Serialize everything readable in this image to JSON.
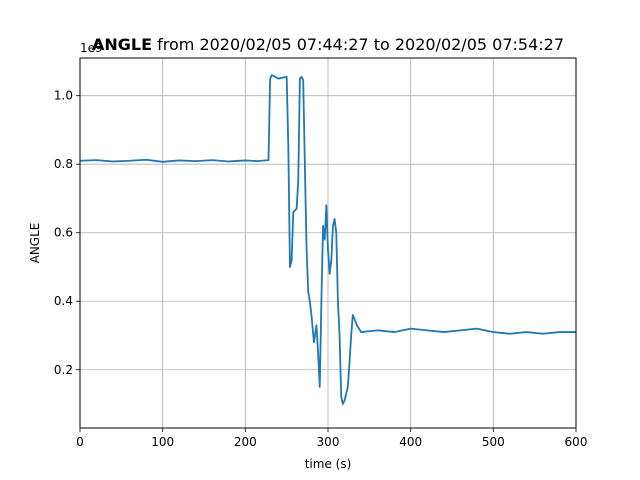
{
  "chart_data": {
    "type": "line",
    "title_bold": "ANGLE",
    "title_rest": " from 2020/02/05 07:44:27 to 2020/02/05 07:54:27",
    "xlabel": "time (s)",
    "ylabel": "ANGLE",
    "offset_text": "1e9",
    "xlim": [
      0,
      600
    ],
    "ylim": [
      0.03,
      1.11
    ],
    "xticks": [
      0,
      100,
      200,
      300,
      400,
      500,
      600
    ],
    "xtick_labels": [
      "0",
      "100",
      "200",
      "300",
      "400",
      "500",
      "600"
    ],
    "yticks": [
      0.2,
      0.4,
      0.6,
      0.8,
      1.0
    ],
    "ytick_labels": [
      "0.2",
      "0.4",
      "0.6",
      "0.8",
      "1.0"
    ],
    "grid": true,
    "line_color": "#1f77b4",
    "series": [
      {
        "x": [
          0,
          20,
          40,
          60,
          80,
          100,
          120,
          140,
          160,
          180,
          200,
          215,
          228,
          230,
          232,
          240,
          250,
          252,
          254,
          256,
          258,
          262,
          264,
          266,
          268,
          270,
          272,
          274,
          276,
          278,
          280,
          283,
          286,
          288,
          290,
          292,
          294,
          296,
          298,
          300,
          302,
          304,
          306,
          308,
          310,
          312,
          314,
          316,
          318,
          320,
          322,
          324,
          326,
          328,
          330,
          335,
          340,
          360,
          380,
          400,
          420,
          440,
          460,
          480,
          500,
          520,
          540,
          560,
          580,
          600
        ],
        "y": [
          0.81,
          0.812,
          0.808,
          0.81,
          0.813,
          0.807,
          0.811,
          0.809,
          0.812,
          0.808,
          0.811,
          0.809,
          0.812,
          1.05,
          1.06,
          1.05,
          1.055,
          0.85,
          0.5,
          0.52,
          0.66,
          0.67,
          0.75,
          1.05,
          1.055,
          1.045,
          0.8,
          0.56,
          0.43,
          0.4,
          0.36,
          0.28,
          0.33,
          0.25,
          0.15,
          0.4,
          0.62,
          0.58,
          0.68,
          0.55,
          0.48,
          0.52,
          0.62,
          0.64,
          0.6,
          0.4,
          0.3,
          0.12,
          0.1,
          0.11,
          0.13,
          0.15,
          0.22,
          0.3,
          0.36,
          0.33,
          0.31,
          0.315,
          0.31,
          0.32,
          0.315,
          0.31,
          0.315,
          0.32,
          0.31,
          0.305,
          0.31,
          0.305,
          0.31,
          0.31
        ]
      }
    ]
  }
}
